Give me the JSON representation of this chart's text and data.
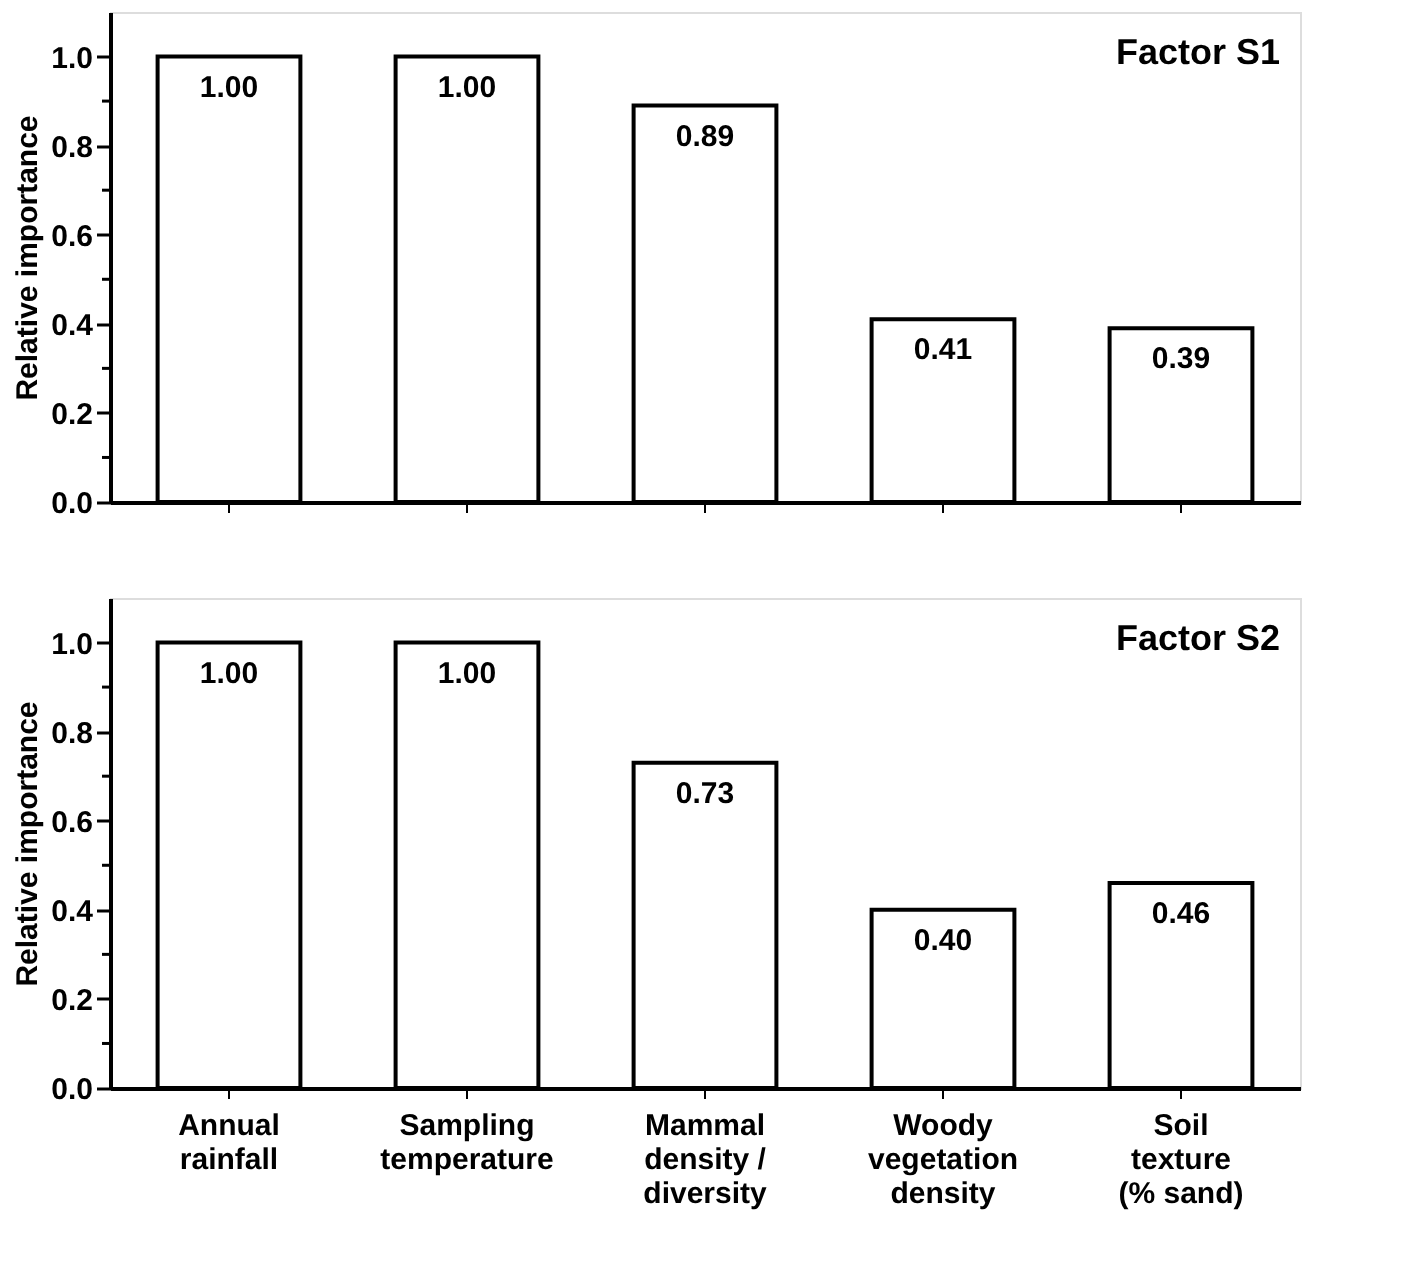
{
  "chart_data": [
    {
      "type": "bar",
      "title": "Factor S1",
      "ylabel": "Relative importance",
      "categories": [
        null,
        null,
        null,
        null,
        null
      ],
      "values": [
        1.0,
        1.0,
        0.89,
        0.41,
        0.39
      ],
      "value_labels": [
        "1.00",
        "1.00",
        "0.89",
        "0.41",
        "0.39"
      ],
      "color": "#ffffff",
      "ylim": [
        0,
        1.1
      ],
      "yticks": [
        {
          "value": 0,
          "label": "0.0"
        },
        {
          "value": 0.1,
          "label": null
        },
        {
          "value": 0.2,
          "label": "0.2"
        },
        {
          "value": 0.3,
          "label": null
        },
        {
          "value": 0.4,
          "label": "0.4"
        },
        {
          "value": 0.5,
          "label": null
        },
        {
          "value": 0.6,
          "label": "0.6"
        },
        {
          "value": 0.7,
          "label": null
        },
        {
          "value": 0.8,
          "label": "0.8"
        },
        {
          "value": 0.9,
          "label": null
        },
        {
          "value": 1.0,
          "label": "1.0"
        }
      ],
      "grid": false,
      "tick_labels": "y"
    },
    {
      "type": "bar",
      "title": "Factor S2",
      "ylabel": "Relative importance",
      "categories": [
        "Annual\nrainfall",
        "Sampling\ntemperature",
        "Mammal\ndensity /\ndiversity",
        "Woody\nvegetation\ndensity",
        "Soil\ntexture\n(% sand)"
      ],
      "values": [
        1.0,
        1.0,
        0.73,
        0.4,
        0.46
      ],
      "value_labels": [
        "1.00",
        "1.00",
        "0.73",
        "0.40",
        "0.46"
      ],
      "color": "#ffffff",
      "ylim": [
        0,
        1.1
      ],
      "yticks": [
        {
          "value": 0,
          "label": "0.0"
        },
        {
          "value": 0.1,
          "label": null
        },
        {
          "value": 0.2,
          "label": "0.2"
        },
        {
          "value": 0.3,
          "label": null
        },
        {
          "value": 0.4,
          "label": "0.4"
        },
        {
          "value": 0.5,
          "label": null
        },
        {
          "value": 0.6,
          "label": "0.6"
        },
        {
          "value": 0.7,
          "label": null
        },
        {
          "value": 0.8,
          "label": "0.8"
        },
        {
          "value": 0.9,
          "label": null
        },
        {
          "value": 1.0,
          "label": "1.0"
        }
      ],
      "grid": false
    }
  ]
}
